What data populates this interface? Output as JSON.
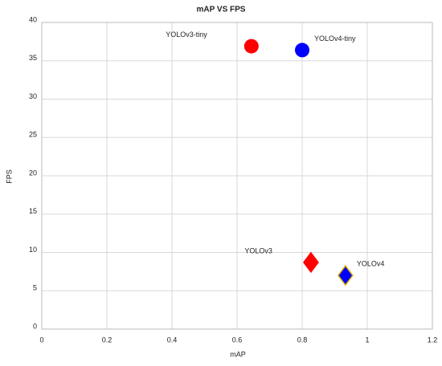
{
  "chart_data": {
    "type": "scatter",
    "title": "mAP VS FPS",
    "x_label": "mAP",
    "y_label": "FPS",
    "xlim": [
      0,
      1.2
    ],
    "xticks": [
      0,
      0.2,
      0.4,
      0.6,
      0.8,
      1,
      1.2
    ],
    "ylim": [
      0,
      40
    ],
    "yticks": [
      0,
      5,
      10,
      15,
      20,
      25,
      30,
      35,
      40
    ],
    "grid": true,
    "series": [
      {
        "name": "YOLOv3-tiny",
        "color": "#ff0000",
        "marker": "circle",
        "x": [
          0.644
        ],
        "values": [
          36.9
        ]
      },
      {
        "name": "YOLOv4-tiny",
        "color": "#0000ff",
        "marker": "circle",
        "x": [
          0.8
        ],
        "values": [
          36.4
        ]
      },
      {
        "name": "YOLOv3",
        "color": "#ff0000",
        "marker": "diamond",
        "x": [
          0.827
        ],
        "values": [
          8.7
        ]
      },
      {
        "name": "YOLOv4",
        "color": "#0000ff",
        "edgecolor": "#e0b000",
        "marker": "diamond",
        "x": [
          0.933
        ],
        "values": [
          7.0
        ]
      }
    ]
  }
}
